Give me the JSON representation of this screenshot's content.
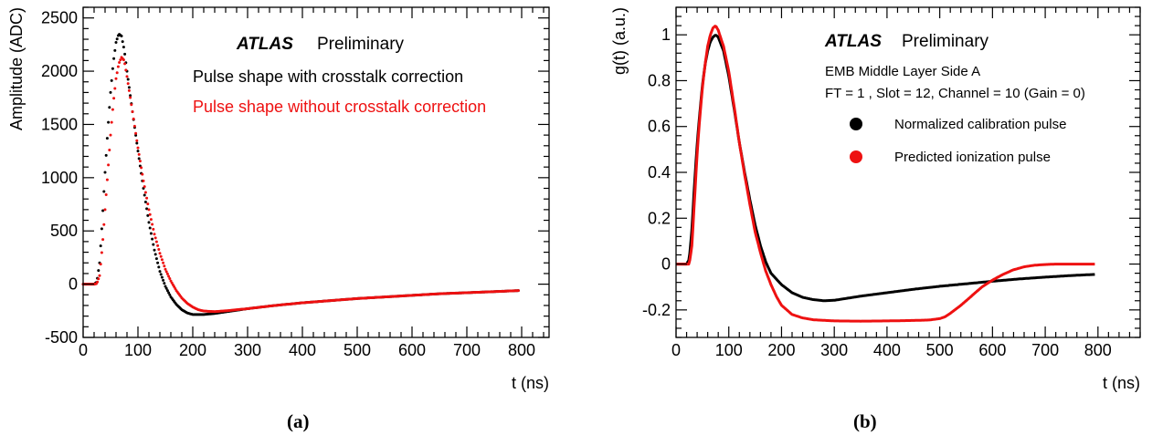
{
  "chart_data": [
    {
      "type": "scatter",
      "caption": "(a)",
      "xlabel": "t (ns)",
      "ylabel": "Amplitude (ADC)",
      "xlim": [
        0,
        850
      ],
      "ylim": [
        -500,
        2600
      ],
      "x_ticks": [
        0,
        100,
        200,
        300,
        400,
        500,
        600,
        700,
        800
      ],
      "y_ticks": [
        -500,
        0,
        500,
        1000,
        1500,
        2000,
        2500
      ],
      "grid": false,
      "atlas_label": "ATLAS",
      "atlas_status": "Preliminary",
      "legend_position": "top-right",
      "series": [
        {
          "name": "Pulse shape with crosstalk correction",
          "color": "#000000",
          "points": [
            [
              0,
              0
            ],
            [
              20,
              0
            ],
            [
              25,
              20
            ],
            [
              30,
              200
            ],
            [
              35,
              600
            ],
            [
              40,
              1050
            ],
            [
              45,
              1450
            ],
            [
              50,
              1800
            ],
            [
              55,
              2080
            ],
            [
              60,
              2270
            ],
            [
              65,
              2350
            ],
            [
              70,
              2330
            ],
            [
              75,
              2200
            ],
            [
              80,
              2000
            ],
            [
              90,
              1620
            ],
            [
              100,
              1250
            ],
            [
              110,
              900
            ],
            [
              120,
              580
            ],
            [
              130,
              320
            ],
            [
              140,
              120
            ],
            [
              150,
              -20
            ],
            [
              160,
              -120
            ],
            [
              170,
              -190
            ],
            [
              180,
              -240
            ],
            [
              190,
              -270
            ],
            [
              200,
              -285
            ],
            [
              220,
              -285
            ],
            [
              240,
              -275
            ],
            [
              260,
              -260
            ],
            [
              300,
              -230
            ],
            [
              350,
              -200
            ],
            [
              400,
              -175
            ],
            [
              450,
              -155
            ],
            [
              500,
              -135
            ],
            [
              550,
              -120
            ],
            [
              600,
              -105
            ],
            [
              650,
              -90
            ],
            [
              700,
              -80
            ],
            [
              750,
              -70
            ],
            [
              795,
              -60
            ]
          ]
        },
        {
          "name": "Pulse shape without crosstalk correction",
          "color": "#ee1111",
          "points": [
            [
              0,
              0
            ],
            [
              20,
              0
            ],
            [
              25,
              5
            ],
            [
              30,
              80
            ],
            [
              35,
              350
            ],
            [
              40,
              700
            ],
            [
              45,
              1050
            ],
            [
              50,
              1400
            ],
            [
              55,
              1700
            ],
            [
              60,
              1930
            ],
            [
              65,
              2070
            ],
            [
              70,
              2130
            ],
            [
              75,
              2100
            ],
            [
              80,
              1950
            ],
            [
              90,
              1620
            ],
            [
              100,
              1280
            ],
            [
              110,
              970
            ],
            [
              120,
              700
            ],
            [
              130,
              470
            ],
            [
              140,
              290
            ],
            [
              150,
              140
            ],
            [
              160,
              30
            ],
            [
              170,
              -60
            ],
            [
              180,
              -130
            ],
            [
              190,
              -180
            ],
            [
              200,
              -215
            ],
            [
              210,
              -240
            ],
            [
              220,
              -252
            ],
            [
              240,
              -258
            ],
            [
              260,
              -250
            ],
            [
              300,
              -230
            ],
            [
              350,
              -200
            ],
            [
              400,
              -175
            ],
            [
              450,
              -155
            ],
            [
              500,
              -135
            ],
            [
              550,
              -120
            ],
            [
              600,
              -105
            ],
            [
              650,
              -90
            ],
            [
              700,
              -80
            ],
            [
              750,
              -70
            ],
            [
              795,
              -60
            ]
          ]
        }
      ]
    },
    {
      "type": "scatter",
      "caption": "(b)",
      "xlabel": "t (ns)",
      "ylabel": "g(t) (a.u.)",
      "xlim": [
        0,
        880
      ],
      "ylim": [
        -0.32,
        1.12
      ],
      "x_ticks": [
        0,
        100,
        200,
        300,
        400,
        500,
        600,
        700,
        800
      ],
      "y_ticks": [
        -0.2,
        0,
        0.2,
        0.4,
        0.6,
        0.8,
        1
      ],
      "y_tick_labels": [
        "-0.2",
        "0",
        "0.2",
        "0.4",
        "0.6",
        "0.8",
        "1"
      ],
      "grid": false,
      "atlas_label": "ATLAS",
      "atlas_status": "Preliminary",
      "info_line1": "EMB Middle Layer Side A",
      "info_line2": "FT = 1 , Slot = 12, Channel = 10 (Gain = 0)",
      "legend_position": "top-right",
      "series": [
        {
          "name": "Normalized calibration pulse",
          "color": "#000000",
          "points": [
            [
              0,
              0
            ],
            [
              20,
              0
            ],
            [
              25,
              0.02
            ],
            [
              30,
              0.15
            ],
            [
              35,
              0.35
            ],
            [
              40,
              0.52
            ],
            [
              45,
              0.66
            ],
            [
              50,
              0.78
            ],
            [
              55,
              0.87
            ],
            [
              60,
              0.93
            ],
            [
              65,
              0.97
            ],
            [
              70,
              0.99
            ],
            [
              75,
              1.0
            ],
            [
              80,
              0.99
            ],
            [
              90,
              0.93
            ],
            [
              100,
              0.82
            ],
            [
              110,
              0.68
            ],
            [
              120,
              0.53
            ],
            [
              130,
              0.4
            ],
            [
              140,
              0.28
            ],
            [
              150,
              0.17
            ],
            [
              160,
              0.08
            ],
            [
              170,
              0.01
            ],
            [
              180,
              -0.04
            ],
            [
              200,
              -0.09
            ],
            [
              220,
              -0.125
            ],
            [
              240,
              -0.145
            ],
            [
              260,
              -0.155
            ],
            [
              280,
              -0.16
            ],
            [
              300,
              -0.158
            ],
            [
              350,
              -0.14
            ],
            [
              400,
              -0.125
            ],
            [
              450,
              -0.11
            ],
            [
              500,
              -0.097
            ],
            [
              550,
              -0.086
            ],
            [
              600,
              -0.075
            ],
            [
              650,
              -0.065
            ],
            [
              700,
              -0.057
            ],
            [
              750,
              -0.05
            ],
            [
              795,
              -0.045
            ]
          ]
        },
        {
          "name": "Predicted ionization pulse",
          "color": "#ee1111",
          "points": [
            [
              0,
              0
            ],
            [
              20,
              0
            ],
            [
              25,
              0.0
            ],
            [
              30,
              0.08
            ],
            [
              35,
              0.28
            ],
            [
              40,
              0.48
            ],
            [
              45,
              0.64
            ],
            [
              50,
              0.77
            ],
            [
              55,
              0.87
            ],
            [
              60,
              0.95
            ],
            [
              65,
              1.0
            ],
            [
              70,
              1.03
            ],
            [
              75,
              1.04
            ],
            [
              80,
              1.02
            ],
            [
              90,
              0.95
            ],
            [
              100,
              0.84
            ],
            [
              110,
              0.69
            ],
            [
              120,
              0.53
            ],
            [
              130,
              0.39
            ],
            [
              140,
              0.26
            ],
            [
              150,
              0.14
            ],
            [
              160,
              0.05
            ],
            [
              170,
              -0.03
            ],
            [
              180,
              -0.09
            ],
            [
              190,
              -0.14
            ],
            [
              200,
              -0.18
            ],
            [
              220,
              -0.22
            ],
            [
              240,
              -0.235
            ],
            [
              260,
              -0.243
            ],
            [
              300,
              -0.248
            ],
            [
              350,
              -0.249
            ],
            [
              400,
              -0.248
            ],
            [
              450,
              -0.246
            ],
            [
              480,
              -0.244
            ],
            [
              500,
              -0.238
            ],
            [
              510,
              -0.23
            ],
            [
              520,
              -0.215
            ],
            [
              540,
              -0.18
            ],
            [
              560,
              -0.14
            ],
            [
              580,
              -0.1
            ],
            [
              600,
              -0.07
            ],
            [
              620,
              -0.045
            ],
            [
              640,
              -0.025
            ],
            [
              660,
              -0.012
            ],
            [
              680,
              -0.005
            ],
            [
              700,
              -0.002
            ],
            [
              720,
              0.0
            ],
            [
              750,
              0.0
            ],
            [
              795,
              0.0
            ]
          ]
        }
      ]
    }
  ]
}
